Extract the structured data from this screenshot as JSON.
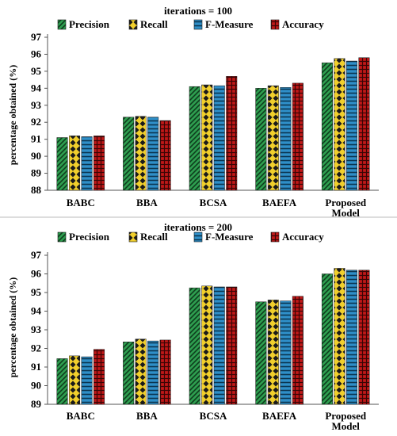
{
  "palette": {
    "precision": "#2e9e4f",
    "recall": "#e8c21d",
    "fmeasure": "#2f8fc8",
    "accuracy": "#c01818",
    "axis": "#555555",
    "divider": "#bbbbbb"
  },
  "chart_data": [
    {
      "type": "bar",
      "title": "iterations = 100",
      "ylabel": "percentage obtained (%)",
      "xlabel": "",
      "ylim": [
        88,
        97
      ],
      "yticks": [
        88,
        89,
        90,
        91,
        92,
        93,
        94,
        95,
        96,
        97
      ],
      "grid": false,
      "legend_position": "top",
      "categories": [
        "BABC",
        "BBA",
        "BCSA",
        "BAEFA",
        "Proposed\nModel"
      ],
      "series": [
        {
          "name": "Precision",
          "values": [
            91.1,
            92.3,
            94.1,
            94.0,
            95.5
          ]
        },
        {
          "name": "Recall",
          "values": [
            91.2,
            92.35,
            94.2,
            94.15,
            95.75
          ]
        },
        {
          "name": "F-Measure",
          "values": [
            91.15,
            92.3,
            94.15,
            94.05,
            95.6
          ]
        },
        {
          "name": "Accuracy",
          "values": [
            91.2,
            92.1,
            94.7,
            94.3,
            95.8
          ]
        }
      ]
    },
    {
      "type": "bar",
      "title": "iterations = 200",
      "ylabel": "percentage obtained (%)",
      "xlabel": "",
      "ylim": [
        89,
        97
      ],
      "yticks": [
        89,
        90,
        91,
        92,
        93,
        94,
        95,
        96,
        97
      ],
      "grid": false,
      "legend_position": "top",
      "categories": [
        "BABC",
        "BBA",
        "BCSA",
        "BAEFA",
        "Proposed\nModel"
      ],
      "series": [
        {
          "name": "Precision",
          "values": [
            91.45,
            92.35,
            95.25,
            94.5,
            96.0
          ]
        },
        {
          "name": "Recall",
          "values": [
            91.6,
            92.5,
            95.35,
            94.6,
            96.3
          ]
        },
        {
          "name": "F-Measure",
          "values": [
            91.55,
            92.4,
            95.3,
            94.55,
            96.2
          ]
        },
        {
          "name": "Accuracy",
          "values": [
            91.95,
            92.45,
            95.3,
            94.8,
            96.2
          ]
        }
      ]
    }
  ]
}
